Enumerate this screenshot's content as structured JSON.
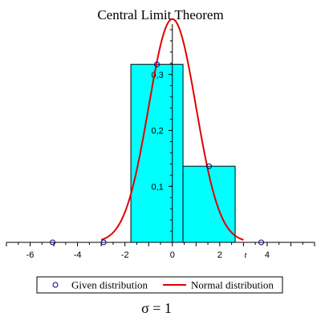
{
  "chart_data": {
    "type": "bar",
    "title": "Central Limit Theorem",
    "xlabel": "t",
    "ylabel": "",
    "xlim": [
      -7,
      6
    ],
    "ylim": [
      0,
      0.39
    ],
    "x_ticks": [
      -6,
      -4,
      -2,
      0,
      2,
      4
    ],
    "y_ticks": [
      0.1,
      0.2,
      0.3
    ],
    "x_tick_labels": [
      "-6",
      "-4",
      "-2",
      "0",
      "2",
      "4"
    ],
    "y_tick_labels": [
      "0,1",
      "0,2",
      "0,3"
    ],
    "histogram": {
      "color": "#00ffff",
      "bins": [
        {
          "x0": -1.75,
          "x1": 0.45,
          "value": 0.318
        },
        {
          "x0": 0.45,
          "x1": 2.65,
          "value": 0.136
        }
      ]
    },
    "series": [
      {
        "name": "Given distribution",
        "kind": "points",
        "color": "#000080",
        "x": [
          -5.05,
          -2.9,
          -0.65,
          1.55,
          3.75
        ],
        "y": [
          0,
          0,
          0.318,
          0.136,
          0
        ]
      },
      {
        "name": "Normal distribution",
        "kind": "line",
        "color": "#e00000",
        "x": [
          -3,
          -2.5,
          -2,
          -1.5,
          -1,
          -0.5,
          0,
          0.5,
          1,
          1.5,
          2,
          2.5,
          3
        ],
        "y": [
          0.0044,
          0.0175,
          0.054,
          0.1295,
          0.242,
          0.352,
          0.399,
          0.352,
          0.242,
          0.1295,
          0.054,
          0.0175,
          0.0044
        ]
      }
    ],
    "legend": {
      "position": "bottom",
      "entries": [
        "Given distribution",
        "Normal distribution"
      ]
    },
    "caption": "σ = 1",
    "grid": false
  }
}
